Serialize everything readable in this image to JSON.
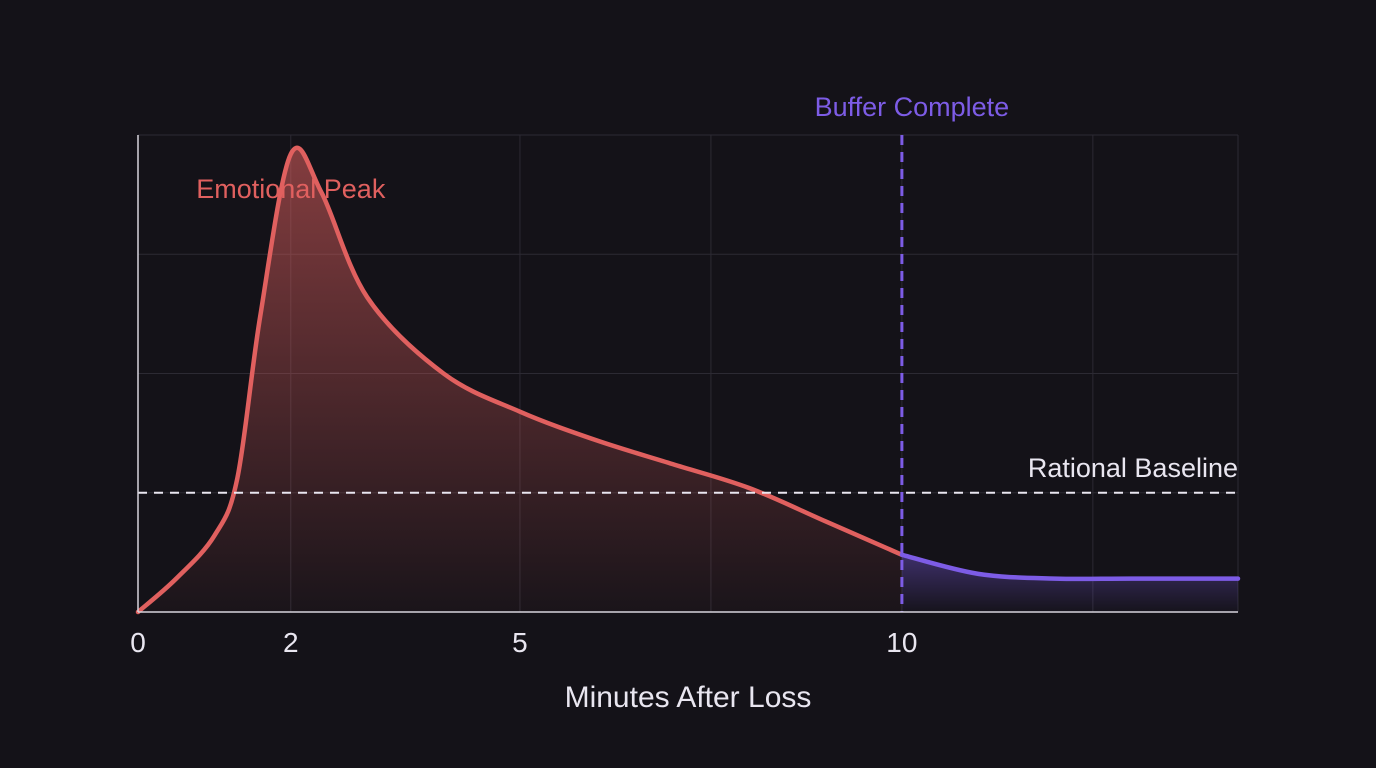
{
  "chart_data": {
    "type": "area",
    "title": "",
    "xlabel": "Minutes After Loss",
    "ylabel": "",
    "xlim": [
      0,
      14.4
    ],
    "ylim": [
      0,
      1
    ],
    "x_ticks": [
      0,
      2,
      5,
      10
    ],
    "x_tick_labels": [
      "0",
      "2",
      "5",
      "10"
    ],
    "grid": true,
    "series": [
      {
        "segment": "emotional",
        "x": [
          0,
          0.5,
          1.0,
          1.3,
          1.6,
          2.0,
          2.4,
          3.0,
          4.0,
          5.0,
          6.0,
          7.0,
          8.0,
          9.0,
          10.0
        ],
        "y": [
          0.0,
          0.07,
          0.16,
          0.28,
          0.62,
          0.96,
          0.88,
          0.66,
          0.5,
          0.42,
          0.36,
          0.31,
          0.26,
          0.19,
          0.12
        ]
      },
      {
        "segment": "recovered",
        "x": [
          10.0,
          11.0,
          12.0,
          13.0,
          14.4
        ],
        "y": [
          0.12,
          0.08,
          0.07,
          0.07,
          0.07
        ]
      }
    ],
    "reference_lines": {
      "baseline": {
        "y": 0.25,
        "label": "Rational Baseline"
      },
      "buffer": {
        "x": 10,
        "label": "Buffer Complete"
      }
    },
    "annotations": [
      {
        "text": "Emotional Peak",
        "x": 2,
        "y": 0.96
      }
    ],
    "colors": {
      "background": "#141218",
      "emotional": "#e0605f",
      "recovered": "#7d5ce6",
      "baseline": "#e9e6f0",
      "grid": "#2c2a33",
      "axis": "#d6d3dc"
    }
  }
}
